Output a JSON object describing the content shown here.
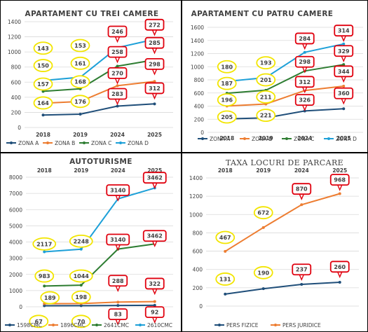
{
  "colors": {
    "zona_a": "#1F4E79",
    "zona_b": "#ED7D31",
    "zona_c": "#2E7D32",
    "zona_d": "#1DA0D8",
    "grid": "#D9D9D9",
    "text": "#404040",
    "border": "#000000",
    "callout_yellow": "#F2E500",
    "callout_red": "#E0000E"
  },
  "chart_data": [
    {
      "type": "line",
      "title": "APARTAMENT CU TREI CAMERE",
      "categories": [
        "2018",
        "2019",
        "2024",
        "2025"
      ],
      "ylim": [
        0,
        1400
      ],
      "yticks": [
        0,
        200,
        400,
        600,
        800,
        1000,
        1200,
        1400
      ],
      "grid": true,
      "legend_position": "bottom",
      "series": [
        {
          "name": "ZONA A",
          "values": [
            164,
            176,
            283,
            312
          ],
          "color": "#1F4E79"
        },
        {
          "name": "ZONA B",
          "values": [
            321,
            344,
            553,
            610
          ],
          "color": "#ED7D31"
        },
        {
          "name": "ZONA C",
          "values": [
            478,
            512,
            811,
            895
          ],
          "color": "#2E7D32"
        },
        {
          "name": "ZONA D",
          "values": [
            621,
            665,
            1057,
            1167
          ],
          "color": "#1DA0D8"
        }
      ],
      "callouts": [
        {
          "text": "143",
          "style": "yellow",
          "cat": 0,
          "level": 1050
        },
        {
          "text": "150",
          "style": "yellow",
          "cat": 0,
          "level": 820
        },
        {
          "text": "157",
          "style": "yellow",
          "cat": 0,
          "level": 575
        },
        {
          "text": "164",
          "style": "yellow",
          "cat": 0,
          "level": 325
        },
        {
          "text": "153",
          "style": "yellow",
          "cat": 1,
          "level": 1085
        },
        {
          "text": "161",
          "style": "yellow",
          "cat": 1,
          "level": 850
        },
        {
          "text": "168",
          "style": "yellow",
          "cat": 1,
          "level": 605
        },
        {
          "text": "176",
          "style": "yellow",
          "cat": 1,
          "level": 345
        },
        {
          "text": "246",
          "style": "red",
          "cat": 2,
          "level": 1270
        },
        {
          "text": "258",
          "style": "red",
          "cat": 2,
          "level": 1000
        },
        {
          "text": "270",
          "style": "red",
          "cat": 2,
          "level": 720
        },
        {
          "text": "283",
          "style": "red",
          "cat": 2,
          "level": 445
        },
        {
          "text": "272",
          "style": "red",
          "cat": 3,
          "level": 1360
        },
        {
          "text": "285",
          "style": "red",
          "cat": 3,
          "level": 1120
        },
        {
          "text": "298",
          "style": "red",
          "cat": 3,
          "level": 840
        },
        {
          "text": "312",
          "style": "red",
          "cat": 3,
          "level": 520
        }
      ]
    },
    {
      "type": "line",
      "title": "APARTAMENT CU PATRU CAMERE",
      "categories": [
        "2018",
        "2019",
        "2024",
        "2025"
      ],
      "ylim": [
        0,
        1600
      ],
      "yticks": [
        0,
        200,
        400,
        600,
        800,
        1000,
        1200,
        1400,
        1600
      ],
      "grid": true,
      "legend_position": "bottom",
      "series": [
        {
          "name": "ZONA A",
          "values": [
            205,
            221,
            326,
            360
          ],
          "color": "#1F4E79"
        },
        {
          "name": "ZONA B",
          "values": [
            401,
            432,
            638,
            704
          ],
          "color": "#ED7D31"
        },
        {
          "name": "ZONA C",
          "values": [
            596,
            642,
            935,
            1033
          ],
          "color": "#2E7D32"
        },
        {
          "name": "ZONA D",
          "values": [
            776,
            835,
            1219,
            1347
          ],
          "color": "#1DA0D8"
        }
      ],
      "callouts": [
        {
          "text": "180",
          "style": "yellow",
          "cat": 0,
          "level": 1000
        },
        {
          "text": "187",
          "style": "yellow",
          "cat": 0,
          "level": 745
        },
        {
          "text": "196",
          "style": "yellow",
          "cat": 0,
          "level": 495
        },
        {
          "text": "205",
          "style": "yellow",
          "cat": 0,
          "level": 235
        },
        {
          "text": "193",
          "style": "yellow",
          "cat": 1,
          "level": 1060
        },
        {
          "text": "201",
          "style": "yellow",
          "cat": 1,
          "level": 800
        },
        {
          "text": "211",
          "style": "yellow",
          "cat": 1,
          "level": 540
        },
        {
          "text": "221",
          "style": "yellow",
          "cat": 1,
          "level": 260
        },
        {
          "text": "284",
          "style": "red",
          "cat": 2,
          "level": 1430
        },
        {
          "text": "298",
          "style": "red",
          "cat": 2,
          "level": 1075
        },
        {
          "text": "312",
          "style": "red",
          "cat": 2,
          "level": 770
        },
        {
          "text": "326",
          "style": "red",
          "cat": 2,
          "level": 495
        },
        {
          "text": "314",
          "style": "red",
          "cat": 3,
          "level": 1550
        },
        {
          "text": "329",
          "style": "red",
          "cat": 3,
          "level": 1240
        },
        {
          "text": "344",
          "style": "red",
          "cat": 3,
          "level": 930
        },
        {
          "text": "360",
          "style": "red",
          "cat": 3,
          "level": 595
        }
      ]
    },
    {
      "type": "line",
      "title": "AUTOTURISME",
      "categories": [
        "2018",
        "2019",
        "2024",
        "2025"
      ],
      "ylim": [
        0,
        8000
      ],
      "yticks": [
        0,
        1000,
        2000,
        3000,
        4000,
        5000,
        6000,
        7000,
        8000
      ],
      "grid": true,
      "legend_position": "bottom",
      "series": [
        {
          "name": "1598CMC",
          "values": [
            67,
            70,
            83,
            92
          ],
          "color": "#1F4E79"
        },
        {
          "name": "1896CMC",
          "values": [
            189,
            198,
            288,
            322
          ],
          "color": "#ED7D31"
        },
        {
          "name": "2641CMC",
          "values": [
            1281,
            1335,
            3563,
            3880
          ],
          "color": "#2E7D32"
        },
        {
          "name": "2610CMC",
          "values": [
            3393,
            3556,
            6664,
            7334
          ],
          "color": "#1DA0D8"
        }
      ],
      "callouts": [
        {
          "text": "2117",
          "style": "yellow",
          "cat": 0,
          "level": 3880
        },
        {
          "text": "983",
          "style": "yellow",
          "cat": 0,
          "level": 1900
        },
        {
          "text": "189",
          "style": "yellow",
          "cat": 0,
          "level": 560,
          "dx": 8
        },
        {
          "text": "67",
          "style": "yellow",
          "cat": 0,
          "level": -900,
          "dx": -8
        },
        {
          "text": "2248",
          "style": "yellow",
          "cat": 1,
          "level": 4050
        },
        {
          "text": "1044",
          "style": "yellow",
          "cat": 1,
          "level": 1900
        },
        {
          "text": "198",
          "style": "yellow",
          "cat": 1,
          "level": 600
        },
        {
          "text": "70",
          "style": "yellow",
          "cat": 1,
          "level": -900
        },
        {
          "text": "3140",
          "style": "red",
          "cat": 2,
          "level": 7200
        },
        {
          "text": "3140",
          "style": "red",
          "cat": 2,
          "level": 4150
        },
        {
          "text": "288",
          "style": "red",
          "cat": 2,
          "level": 1610
        },
        {
          "text": "83",
          "style": "red",
          "cat": 2,
          "level": -460
        },
        {
          "text": "3462",
          "style": "red",
          "cat": 3,
          "level": 7970
        },
        {
          "text": "3462",
          "style": "red",
          "cat": 3,
          "level": 4380
        },
        {
          "text": "322",
          "style": "red",
          "cat": 3,
          "level": 1430
        },
        {
          "text": "92",
          "style": "red",
          "cat": 3,
          "level": -330
        }
      ]
    },
    {
      "type": "line",
      "title": "TAXA LOCURI DE PARCARE",
      "categories": [
        "2018",
        "2019",
        "2024",
        "2025"
      ],
      "ylim": [
        0,
        1400
      ],
      "yticks": [
        0,
        200,
        400,
        600,
        800,
        1000,
        1200,
        1400
      ],
      "grid": true,
      "legend_position": "bottom",
      "series": [
        {
          "name": "PERS FIZICE",
          "values": [
            131,
            190,
            237,
            260
          ],
          "color": "#1F4E79"
        },
        {
          "name": "PERS JURIDICE",
          "values": [
            598,
            858,
            1107,
            1228
          ],
          "color": "#ED7D31"
        }
      ],
      "callouts": [
        {
          "text": "467",
          "style": "yellow",
          "cat": 0,
          "level": 750
        },
        {
          "text": "131",
          "style": "yellow",
          "cat": 0,
          "level": 295
        },
        {
          "text": "672",
          "style": "yellow",
          "cat": 1,
          "level": 1020
        },
        {
          "text": "190",
          "style": "yellow",
          "cat": 1,
          "level": 365
        },
        {
          "text": "870",
          "style": "red",
          "cat": 2,
          "level": 1280
        },
        {
          "text": "237",
          "style": "red",
          "cat": 2,
          "level": 400
        },
        {
          "text": "968",
          "style": "red",
          "cat": 3,
          "level": 1380
        },
        {
          "text": "260",
          "style": "red",
          "cat": 3,
          "level": 430
        }
      ]
    }
  ]
}
